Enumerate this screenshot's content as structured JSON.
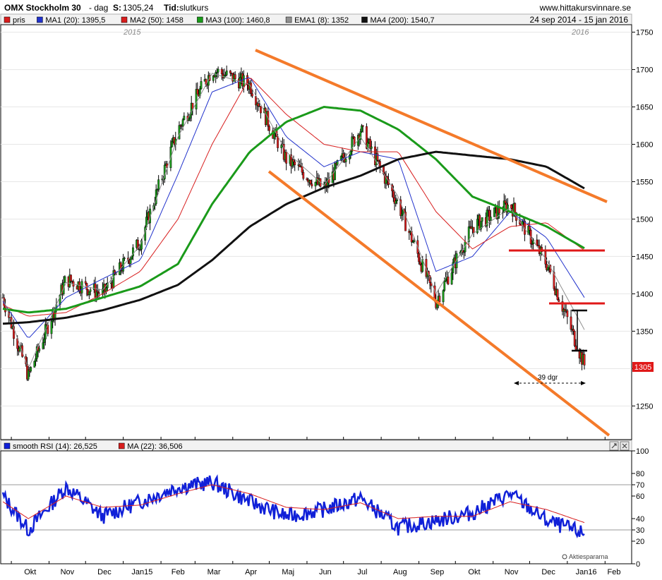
{
  "header": {
    "symbol": "OMX Stockholm 30",
    "interval": "- dag",
    "price_label": "S:",
    "price_value": "1305,24",
    "time_label": "Tid:",
    "time_value": "slutkurs",
    "site": "www.hittakursvinnare.se",
    "date_range": "24 sep 2014 - 15 jan 2016"
  },
  "legend_main": [
    {
      "label": "pris",
      "color": "#d81e1e"
    },
    {
      "label": "MA1 (20): 1395,5",
      "color": "#2233cc"
    },
    {
      "label": "MA2 (50): 1458",
      "color": "#d81e1e"
    },
    {
      "label": "MA3 (100): 1460,8",
      "color": "#1a9a1a"
    },
    {
      "label": "EMA1 (8): 1352",
      "color": "#909090"
    },
    {
      "label": "MA4 (200): 1540,7",
      "color": "#111111"
    }
  ],
  "legend_rsi": [
    {
      "label": "smooth RSI (14): 26,525",
      "color": "#1020d8"
    },
    {
      "label": "MA (22): 36,506",
      "color": "#d81e1e"
    }
  ],
  "year_labels": [
    "2015",
    "2016"
  ],
  "last_price_tag": "1305",
  "annotation": "39 dgr",
  "watermark": "Aktiespararna",
  "x_months": [
    "Okt",
    "Nov",
    "Dec",
    "Jan15",
    "Feb",
    "Mar",
    "Apr",
    "Maj",
    "Jun",
    "Jul",
    "Aug",
    "Sep",
    "Okt",
    "Nov",
    "Dec",
    "Jan16",
    "Feb"
  ],
  "chart_data": [
    {
      "type": "line",
      "title": "OMX Stockholm 30 - dag",
      "ylim": [
        1205,
        1760
      ],
      "y_ticks": [
        1250,
        1300,
        1350,
        1400,
        1450,
        1500,
        1550,
        1600,
        1650,
        1700,
        1750
      ],
      "x": [
        "2014-09-24",
        "2014-10-15",
        "2014-11-15",
        "2014-12-15",
        "2015-01-15",
        "2015-02-15",
        "2015-03-15",
        "2015-04-15",
        "2015-05-15",
        "2015-06-15",
        "2015-07-15",
        "2015-08-15",
        "2015-09-15",
        "2015-10-15",
        "2015-11-15",
        "2015-12-15",
        "2016-01-15"
      ],
      "series": [
        {
          "name": "pris",
          "values": [
            1395,
            1290,
            1420,
            1400,
            1470,
            1620,
            1700,
            1680,
            1580,
            1540,
            1620,
            1520,
            1390,
            1490,
            1520,
            1440,
            1305
          ]
        },
        {
          "name": "MA1 (20)",
          "values": [
            1390,
            1340,
            1395,
            1420,
            1445,
            1560,
            1670,
            1690,
            1610,
            1570,
            1590,
            1580,
            1430,
            1450,
            1510,
            1475,
            1395
          ]
        },
        {
          "name": "MA2 (50)",
          "values": [
            1385,
            1370,
            1375,
            1400,
            1430,
            1500,
            1600,
            1690,
            1640,
            1600,
            1590,
            1590,
            1510,
            1460,
            1490,
            1495,
            1458
          ]
        },
        {
          "name": "MA3 (100)",
          "values": [
            1380,
            1375,
            1380,
            1395,
            1410,
            1440,
            1520,
            1590,
            1630,
            1650,
            1645,
            1620,
            1580,
            1530,
            1510,
            1490,
            1461
          ]
        },
        {
          "name": "EMA1 (8)",
          "values": [
            1395,
            1300,
            1415,
            1405,
            1465,
            1610,
            1695,
            1680,
            1590,
            1545,
            1610,
            1530,
            1400,
            1480,
            1515,
            1445,
            1352
          ]
        },
        {
          "name": "MA4 (200)",
          "values": [
            1360,
            1362,
            1368,
            1378,
            1392,
            1412,
            1445,
            1490,
            1520,
            1542,
            1558,
            1580,
            1590,
            1585,
            1580,
            1570,
            1541
          ]
        }
      ]
    },
    {
      "type": "line",
      "title": "smooth RSI (14)",
      "ylim": [
        0,
        100
      ],
      "y_ticks": [
        0,
        20,
        30,
        40,
        60,
        70,
        80,
        100
      ],
      "reference_lines": [
        30,
        70
      ],
      "x": [
        "2014-09-24",
        "2014-10-15",
        "2014-11-15",
        "2014-12-15",
        "2015-01-15",
        "2015-02-15",
        "2015-03-15",
        "2015-04-15",
        "2015-05-15",
        "2015-06-15",
        "2015-07-15",
        "2015-08-15",
        "2015-09-15",
        "2015-10-15",
        "2015-11-15",
        "2015-12-15",
        "2016-01-15"
      ],
      "series": [
        {
          "name": "smooth RSI (14)",
          "values": [
            60,
            30,
            68,
            42,
            55,
            68,
            72,
            55,
            42,
            48,
            58,
            32,
            38,
            45,
            62,
            38,
            26.5
          ]
        },
        {
          "name": "MA (22)",
          "values": [
            55,
            40,
            60,
            50,
            52,
            62,
            70,
            62,
            50,
            48,
            54,
            40,
            42,
            42,
            55,
            48,
            36.5
          ]
        }
      ]
    }
  ]
}
